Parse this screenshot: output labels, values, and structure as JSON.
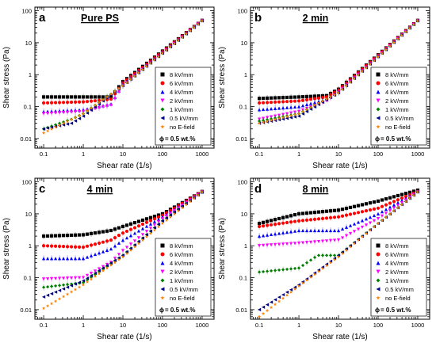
{
  "legend_entries": [
    {
      "label": "8 kV/mm",
      "color": "#000000",
      "marker": "square"
    },
    {
      "label": "6 kV/mm",
      "color": "#ff0000",
      "marker": "circle"
    },
    {
      "label": "4 kV/mm",
      "color": "#0000ff",
      "marker": "triangle-up"
    },
    {
      "label": "2 kV/mm",
      "color": "#ff00ff",
      "marker": "triangle-down"
    },
    {
      "label": "1 kV/mm",
      "color": "#008000",
      "marker": "diamond"
    },
    {
      "label": "0.5 kV/mm",
      "color": "#000080",
      "marker": "triangle-left"
    },
    {
      "label": "no E-field",
      "color": "#ff8000",
      "marker": "star"
    }
  ],
  "phi_symbol": "ϕ",
  "phi_text": " = 0.5 wt.%",
  "xlabel": "Shear rate (1/s)",
  "ylabel": "Shear stress (Pa)",
  "x_ticks": [
    "0.1",
    "1",
    "10",
    "100",
    "1000"
  ],
  "y_ticks": [
    "0.01",
    "0.1",
    "1",
    "10",
    "100"
  ],
  "chart_data": [
    {
      "type": "scatter",
      "panel": "a",
      "title": "Pure PS",
      "xscale": "log",
      "yscale": "log",
      "xlim": [
        0.06,
        2000
      ],
      "ylim": [
        0.005,
        130
      ],
      "series": [
        {
          "name": "8 kV/mm",
          "anchors": [
            [
              0.1,
              0.2
            ],
            [
              1,
              0.2
            ],
            [
              5,
              0.2
            ],
            [
              10,
              0.6
            ],
            [
              1000,
              50
            ]
          ]
        },
        {
          "name": "6 kV/mm",
          "anchors": [
            [
              0.1,
              0.13
            ],
            [
              1,
              0.14
            ],
            [
              5,
              0.17
            ],
            [
              10,
              0.55
            ],
            [
              1000,
              50
            ]
          ]
        },
        {
          "name": "4 kV/mm",
          "anchors": [
            [
              0.1,
              0.07
            ],
            [
              1,
              0.08
            ],
            [
              5,
              0.12
            ],
            [
              10,
              0.5
            ],
            [
              1000,
              50
            ]
          ]
        },
        {
          "name": "2 kV/mm",
          "anchors": [
            [
              0.1,
              0.06
            ],
            [
              1,
              0.07
            ],
            [
              5,
              0.11
            ],
            [
              10,
              0.45
            ],
            [
              1000,
              48
            ]
          ]
        },
        {
          "name": "1 kV/mm",
          "anchors": [
            [
              0.1,
              0.02
            ],
            [
              0.5,
              0.04
            ],
            [
              1,
              0.06
            ],
            [
              10,
              0.45
            ],
            [
              1000,
              48
            ]
          ]
        },
        {
          "name": "0.5 kV/mm",
          "anchors": [
            [
              0.1,
              0.02
            ],
            [
              0.5,
              0.03
            ],
            [
              1,
              0.05
            ],
            [
              10,
              0.45
            ],
            [
              1000,
              48
            ]
          ]
        },
        {
          "name": "no E-field",
          "anchors": [
            [
              0.1,
              0.015
            ],
            [
              1,
              0.06
            ],
            [
              10,
              0.45
            ],
            [
              1000,
              48
            ]
          ]
        }
      ]
    },
    {
      "type": "scatter",
      "panel": "b",
      "title": "2 min",
      "xscale": "log",
      "yscale": "log",
      "xlim": [
        0.06,
        2000
      ],
      "ylim": [
        0.005,
        130
      ],
      "series": [
        {
          "name": "8 kV/mm",
          "anchors": [
            [
              0.1,
              0.18
            ],
            [
              1,
              0.2
            ],
            [
              5,
              0.22
            ],
            [
              10,
              0.35
            ],
            [
              1000,
              50
            ]
          ]
        },
        {
          "name": "6 kV/mm",
          "anchors": [
            [
              0.1,
              0.13
            ],
            [
              1,
              0.15
            ],
            [
              5,
              0.2
            ],
            [
              10,
              0.33
            ],
            [
              1000,
              50
            ]
          ]
        },
        {
          "name": "4 kV/mm",
          "anchors": [
            [
              0.1,
              0.08
            ],
            [
              1,
              0.1
            ],
            [
              5,
              0.17
            ],
            [
              10,
              0.3
            ],
            [
              1000,
              50
            ]
          ]
        },
        {
          "name": "2 kV/mm",
          "anchors": [
            [
              0.1,
              0.04
            ],
            [
              1,
              0.07
            ],
            [
              5,
              0.15
            ],
            [
              10,
              0.28
            ],
            [
              1000,
              48
            ]
          ]
        },
        {
          "name": "1 kV/mm",
          "anchors": [
            [
              0.1,
              0.035
            ],
            [
              1,
              0.06
            ],
            [
              10,
              0.27
            ],
            [
              1000,
              48
            ]
          ]
        },
        {
          "name": "0.5 kV/mm",
          "anchors": [
            [
              0.1,
              0.03
            ],
            [
              1,
              0.05
            ],
            [
              10,
              0.27
            ],
            [
              1000,
              48
            ]
          ]
        },
        {
          "name": "no E-field",
          "anchors": [
            [
              0.1,
              0.03
            ],
            [
              1,
              0.06
            ],
            [
              10,
              0.27
            ],
            [
              1000,
              48
            ]
          ]
        }
      ]
    },
    {
      "type": "scatter",
      "panel": "c",
      "title": "4 min",
      "xscale": "log",
      "yscale": "log",
      "xlim": [
        0.06,
        2000
      ],
      "ylim": [
        0.005,
        130
      ],
      "series": [
        {
          "name": "8 kV/mm",
          "anchors": [
            [
              0.1,
              2
            ],
            [
              1,
              2.2
            ],
            [
              5,
              3
            ],
            [
              10,
              4
            ],
            [
              100,
              10
            ],
            [
              1000,
              50
            ]
          ]
        },
        {
          "name": "6 kV/mm",
          "anchors": [
            [
              0.1,
              1
            ],
            [
              1,
              0.9
            ],
            [
              5,
              1.5
            ],
            [
              10,
              2.5
            ],
            [
              100,
              9
            ],
            [
              1000,
              50
            ]
          ]
        },
        {
          "name": "4 kV/mm",
          "anchors": [
            [
              0.1,
              0.4
            ],
            [
              1,
              0.4
            ],
            [
              5,
              0.8
            ],
            [
              10,
              1.5
            ],
            [
              100,
              8
            ],
            [
              1000,
              48
            ]
          ]
        },
        {
          "name": "2 kV/mm",
          "anchors": [
            [
              0.1,
              0.09
            ],
            [
              1,
              0.1
            ],
            [
              5,
              0.3
            ],
            [
              10,
              0.7
            ],
            [
              100,
              7
            ],
            [
              1000,
              48
            ]
          ]
        },
        {
          "name": "1 kV/mm",
          "anchors": [
            [
              0.1,
              0.05
            ],
            [
              1,
              0.07
            ],
            [
              10,
              0.5
            ],
            [
              100,
              6
            ],
            [
              1000,
              48
            ]
          ]
        },
        {
          "name": "0.5 kV/mm",
          "anchors": [
            [
              0.1,
              0.025
            ],
            [
              1,
              0.08
            ],
            [
              10,
              0.5
            ],
            [
              100,
              6
            ],
            [
              1000,
              48
            ]
          ]
        },
        {
          "name": "no E-field",
          "anchors": [
            [
              0.1,
              0.011
            ],
            [
              1,
              0.06
            ],
            [
              10,
              0.45
            ],
            [
              100,
              5
            ],
            [
              1000,
              48
            ]
          ]
        }
      ]
    },
    {
      "type": "scatter",
      "panel": "d",
      "title": "8 min",
      "xscale": "log",
      "yscale": "log",
      "xlim": [
        0.06,
        2000
      ],
      "ylim": [
        0.005,
        130
      ],
      "series": [
        {
          "name": "8 kV/mm",
          "anchors": [
            [
              0.1,
              5
            ],
            [
              1,
              10
            ],
            [
              10,
              13
            ],
            [
              100,
              25
            ],
            [
              1000,
              55
            ]
          ]
        },
        {
          "name": "6 kV/mm",
          "anchors": [
            [
              0.1,
              4
            ],
            [
              1,
              6
            ],
            [
              10,
              8
            ],
            [
              100,
              15
            ],
            [
              1000,
              50
            ]
          ]
        },
        {
          "name": "4 kV/mm",
          "anchors": [
            [
              0.1,
              2
            ],
            [
              1,
              3
            ],
            [
              10,
              3
            ],
            [
              100,
              10
            ],
            [
              1000,
              50
            ]
          ]
        },
        {
          "name": "2 kV/mm",
          "anchors": [
            [
              0.1,
              1
            ],
            [
              1,
              1.2
            ],
            [
              10,
              1.5
            ],
            [
              100,
              7
            ],
            [
              1000,
              48
            ]
          ]
        },
        {
          "name": "1 kV/mm",
          "anchors": [
            [
              0.1,
              0.15
            ],
            [
              1,
              0.2
            ],
            [
              3,
              0.5
            ],
            [
              10,
              0.5
            ],
            [
              100,
              5
            ],
            [
              1000,
              48
            ]
          ]
        },
        {
          "name": "0.5 kV/mm",
          "anchors": [
            [
              0.1,
              0.01
            ],
            [
              1,
              0.06
            ],
            [
              10,
              0.5
            ],
            [
              100,
              5
            ],
            [
              1000,
              48
            ]
          ]
        },
        {
          "name": "no E-field",
          "anchors": [
            [
              0.1,
              0.006
            ],
            [
              1,
              0.055
            ],
            [
              10,
              0.45
            ],
            [
              100,
              5
            ],
            [
              1000,
              48
            ]
          ]
        }
      ]
    }
  ]
}
